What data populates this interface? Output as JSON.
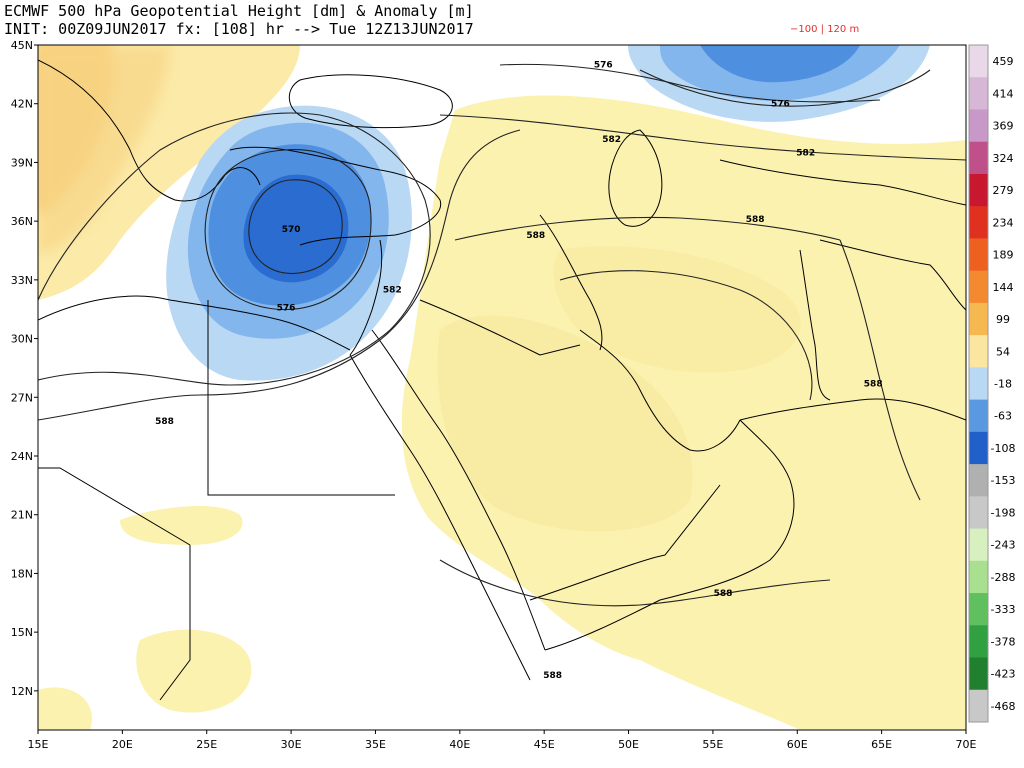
{
  "header": {
    "title": "ECMWF 500 hPa Geopotential Height [dm] & Anomaly [m]",
    "subtitle": "INIT: 00Z09JUN2017 fx: [108] hr --> Tue 12Z13JUN2017",
    "range_note": "−100 | 120 m"
  },
  "axes": {
    "lon_labels": [
      "15E",
      "20E",
      "25E",
      "30E",
      "35E",
      "40E",
      "45E",
      "50E",
      "55E",
      "60E",
      "65E",
      "70E"
    ],
    "lat_labels": [
      "45N",
      "42N",
      "39N",
      "36N",
      "33N",
      "30N",
      "27N",
      "24N",
      "21N",
      "18N",
      "15N",
      "12N"
    ]
  },
  "colorbar": {
    "labels": [
      "459",
      "414",
      "369",
      "324",
      "279",
      "234",
      "189",
      "144",
      "99",
      "54",
      "-18",
      "-63",
      "-108",
      "-153",
      "-198",
      "-243",
      "-288",
      "-333",
      "-378",
      "-423",
      "-468"
    ],
    "colors": [
      "#e8d8e8",
      "#d6b8d6",
      "#c898c8",
      "#c0508a",
      "#c81830",
      "#e03020",
      "#ee6020",
      "#f48a30",
      "#f6b850",
      "#fae6a0",
      "#b8d8f4",
      "#5a98e0",
      "#2060c8",
      "#b0b0b0",
      "#c8c8c8",
      "#d8f0c0",
      "#a8e090",
      "#60c060",
      "#30a040",
      "#208030",
      "#c8c8c8"
    ]
  },
  "map": {
    "lon_range": [
      15,
      70
    ],
    "lat_range": [
      10,
      45
    ],
    "contour_labels": [
      {
        "text": "576",
        "lon": 48.5,
        "lat": 44.0
      },
      {
        "text": "576",
        "lon": 59.0,
        "lat": 42.0
      },
      {
        "text": "582",
        "lon": 49.0,
        "lat": 40.2
      },
      {
        "text": "582",
        "lon": 60.5,
        "lat": 39.5
      },
      {
        "text": "588",
        "lon": 57.5,
        "lat": 36.1
      },
      {
        "text": "588",
        "lon": 44.5,
        "lat": 35.3
      },
      {
        "text": "570",
        "lon": 30.0,
        "lat": 35.6
      },
      {
        "text": "582",
        "lon": 36.0,
        "lat": 32.5
      },
      {
        "text": "576",
        "lon": 29.7,
        "lat": 31.6
      },
      {
        "text": "588",
        "lon": 22.5,
        "lat": 25.8
      },
      {
        "text": "588",
        "lon": 64.5,
        "lat": 27.7
      },
      {
        "text": "588",
        "lon": 55.6,
        "lat": 17.0
      },
      {
        "text": "588",
        "lon": 45.5,
        "lat": 12.8
      }
    ]
  }
}
